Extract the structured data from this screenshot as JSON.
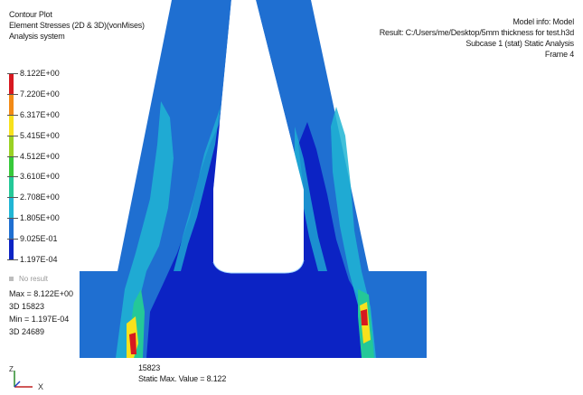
{
  "hud_left": {
    "line1": "Contour Plot",
    "line2": "Element Stresses (2D & 3D)(vonMises)",
    "line3": "Analysis system"
  },
  "hud_right": {
    "model_info": "Model info: Model",
    "result": "Result: C:/Users/me/Desktop/5mm thickness for test.h3d",
    "subcase": "Subcase 1 (stat)   Static Analysis",
    "frame": "Frame 4"
  },
  "legend": {
    "labels": [
      "8.122E+00",
      "7.220E+00",
      "6.317E+00",
      "5.415E+00",
      "4.512E+00",
      "3.610E+00",
      "2.708E+00",
      "1.805E+00",
      "9.025E-01",
      "1.197E-04"
    ],
    "colors": [
      "#d71920",
      "#f28a16",
      "#f7e11c",
      "#9ad123",
      "#37c93a",
      "#24c898",
      "#20b5d4",
      "#1f6fd1",
      "#0c23c4"
    ],
    "no_result": "No result"
  },
  "stats": {
    "max": "Max = 8.122E+00",
    "max_elem": "3D 15823",
    "min": "Min = 1.197E-04",
    "min_elem": "3D 24689"
  },
  "bottom_note": {
    "element": "15823",
    "static_max": "Static Max. Value = 8.122"
  },
  "triad": {
    "z": "Z",
    "x": "X"
  },
  "colors": {
    "deep_blue": "#0c23c4",
    "blue": "#1f6fd1",
    "light_blue": "#20b5d4",
    "teal": "#24c898",
    "green": "#37c93a",
    "yellow": "#f7e11c",
    "orange": "#f28a16",
    "red": "#d71920"
  }
}
